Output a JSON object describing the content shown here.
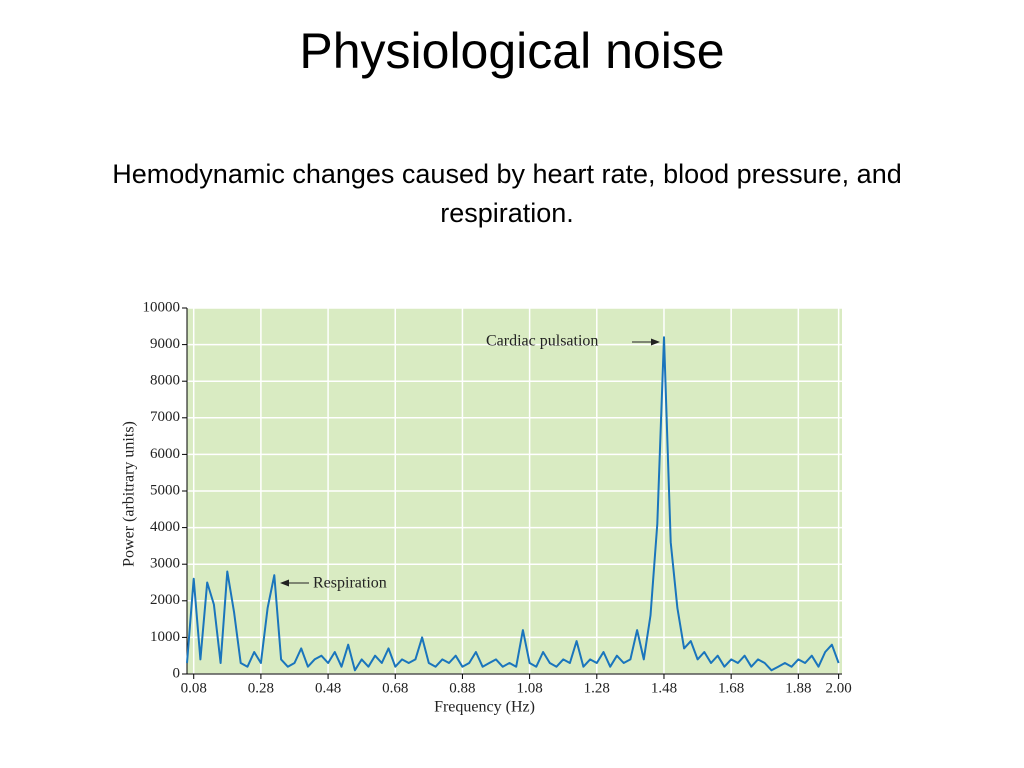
{
  "title": "Physiological noise",
  "subtitle": "Hemodynamic changes caused by heart rate, blood pressure, and respiration.",
  "chart_data": {
    "type": "line",
    "xlabel": "Frequency (Hz)",
    "ylabel": "Power (arbitrary units)",
    "annotations": [
      "Cardiac pulsation",
      "Respiration"
    ],
    "x": [
      0.06,
      0.08,
      0.1,
      0.12,
      0.14,
      0.16,
      0.18,
      0.2,
      0.22,
      0.24,
      0.26,
      0.28,
      0.3,
      0.32,
      0.34,
      0.36,
      0.38,
      0.4,
      0.42,
      0.44,
      0.46,
      0.48,
      0.5,
      0.52,
      0.54,
      0.56,
      0.58,
      0.6,
      0.62,
      0.64,
      0.66,
      0.68,
      0.7,
      0.72,
      0.74,
      0.76,
      0.78,
      0.8,
      0.82,
      0.84,
      0.86,
      0.88,
      0.9,
      0.92,
      0.94,
      0.96,
      0.98,
      1,
      1.02,
      1.04,
      1.06,
      1.08,
      1.1,
      1.12,
      1.14,
      1.16,
      1.18,
      1.2,
      1.22,
      1.24,
      1.26,
      1.28,
      1.3,
      1.32,
      1.34,
      1.36,
      1.38,
      1.4,
      1.42,
      1.44,
      1.46,
      1.48,
      1.5,
      1.52,
      1.54,
      1.56,
      1.58,
      1.6,
      1.62,
      1.64,
      1.66,
      1.68,
      1.7,
      1.72,
      1.74,
      1.76,
      1.78,
      1.8,
      1.82,
      1.84,
      1.86,
      1.88,
      1.9,
      1.92,
      1.94,
      1.96,
      1.98,
      2
    ],
    "series": [
      {
        "name": "Power",
        "color": "#1a75bc",
        "values": [
          300,
          2600,
          400,
          2500,
          1900,
          300,
          2800,
          1700,
          300,
          200,
          600,
          300,
          1800,
          2700,
          400,
          200,
          300,
          700,
          200,
          400,
          500,
          300,
          600,
          200,
          800,
          100,
          400,
          200,
          500,
          300,
          700,
          200,
          400,
          300,
          400,
          1000,
          300,
          200,
          400,
          300,
          500,
          200,
          300,
          600,
          200,
          300,
          400,
          200,
          300,
          200,
          1200,
          300,
          200,
          600,
          300,
          200,
          400,
          300,
          900,
          200,
          400,
          300,
          600,
          200,
          500,
          300,
          400,
          1200,
          400,
          1600,
          4100,
          9200,
          3600,
          1800,
          700,
          900,
          400,
          600,
          300,
          500,
          200,
          400,
          300,
          500,
          200,
          400,
          300,
          100,
          200,
          300,
          200,
          400,
          300,
          500,
          200,
          600,
          800,
          300
        ]
      }
    ],
    "xlim": [
      0.06,
      2.01
    ],
    "ylim": [
      0,
      10000
    ],
    "xticks": [
      0.08,
      0.28,
      0.48,
      0.68,
      0.88,
      1.08,
      1.28,
      1.48,
      1.68,
      1.88,
      {
        "value": 2,
        "label": "2.00"
      }
    ],
    "yticks": [
      0,
      1000,
      2000,
      3000,
      4000,
      5000,
      6000,
      7000,
      8000,
      9000,
      10000
    ],
    "grid": true,
    "background": "#d9ebc2"
  }
}
